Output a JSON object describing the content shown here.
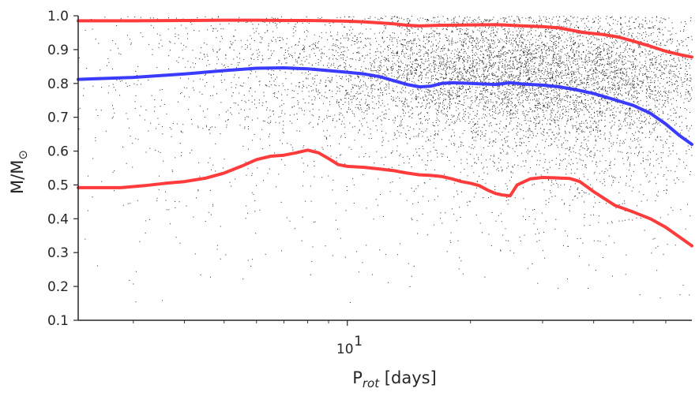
{
  "chart_data": {
    "type": "scatter",
    "title": "",
    "xscale": "log",
    "xlim": [
      2.2,
      69.5
    ],
    "ylim": [
      0.1,
      1.0
    ],
    "xlabel": {
      "base": "P",
      "sub": "rot",
      "rest": " [days]"
    },
    "ylabel": {
      "base": "M/M",
      "sub": "⊙"
    },
    "xticks": [
      {
        "value": 10,
        "base": "10",
        "exp": "1"
      }
    ],
    "yticks": [
      {
        "value": 0.1,
        "label": "0.1"
      },
      {
        "value": 0.2,
        "label": "0.2"
      },
      {
        "value": 0.3,
        "label": "0.3"
      },
      {
        "value": 0.4,
        "label": "0.4"
      },
      {
        "value": 0.5,
        "label": "0.5"
      },
      {
        "value": 0.6,
        "label": "0.6"
      },
      {
        "value": 0.7,
        "label": "0.7"
      },
      {
        "value": 0.8,
        "label": "0.8"
      },
      {
        "value": 0.9,
        "label": "0.9"
      },
      {
        "value": 1.0,
        "label": "1.0"
      }
    ],
    "grid": false,
    "scatter": {
      "color": "#000000",
      "description_points_count": 9000,
      "density": [
        {
          "cx": 28,
          "cy": 0.83,
          "sx": 0.55,
          "sy": 0.09,
          "w": 0.4
        },
        {
          "cx": 18,
          "cy": 0.85,
          "sx": 0.75,
          "sy": 0.12,
          "w": 0.3
        },
        {
          "cx": 40,
          "cy": 0.7,
          "sx": 0.45,
          "sy": 0.18,
          "w": 0.18
        },
        {
          "cx": 8,
          "cy": 0.7,
          "sx": 1.1,
          "sy": 0.25,
          "w": 0.12
        }
      ]
    },
    "series": [
      {
        "color": "#ff3b3b",
        "x": [
          2.2,
          3,
          4,
          5,
          6,
          7,
          8,
          9,
          10,
          11,
          12,
          13,
          14,
          15,
          17,
          20,
          23,
          25,
          27,
          30,
          33,
          35,
          38,
          42,
          46,
          50,
          55,
          60,
          65,
          69.5
        ],
        "y": [
          0.985,
          0.985,
          0.986,
          0.987,
          0.987,
          0.986,
          0.986,
          0.985,
          0.984,
          0.982,
          0.979,
          0.976,
          0.972,
          0.97,
          0.972,
          0.973,
          0.974,
          0.972,
          0.97,
          0.968,
          0.964,
          0.958,
          0.95,
          0.945,
          0.937,
          0.925,
          0.91,
          0.895,
          0.885,
          0.878
        ]
      },
      {
        "color": "#3b3bff",
        "x": [
          2.2,
          3,
          4,
          5,
          6,
          7,
          8,
          9,
          10,
          11,
          12,
          13,
          14,
          15,
          16,
          17,
          18,
          20,
          23,
          25,
          27,
          30,
          33,
          36,
          40,
          45,
          50,
          55,
          60,
          65,
          69.5
        ],
        "y": [
          0.812,
          0.818,
          0.828,
          0.838,
          0.845,
          0.846,
          0.843,
          0.838,
          0.833,
          0.828,
          0.82,
          0.808,
          0.797,
          0.79,
          0.792,
          0.8,
          0.802,
          0.8,
          0.797,
          0.802,
          0.798,
          0.795,
          0.79,
          0.782,
          0.77,
          0.752,
          0.735,
          0.712,
          0.68,
          0.645,
          0.62
        ]
      },
      {
        "color": "#ff3b3b",
        "x": [
          2.2,
          2.8,
          3.2,
          3.6,
          4.0,
          4.5,
          5.0,
          5.5,
          6.0,
          6.5,
          7.0,
          7.5,
          8.0,
          8.5,
          9.0,
          9.5,
          10,
          11,
          12,
          13,
          14,
          15,
          16,
          17,
          18,
          19,
          20,
          21,
          22,
          23,
          24,
          25,
          26,
          28,
          30,
          32,
          35,
          37,
          40,
          45,
          50,
          55,
          60,
          65,
          69.5
        ],
        "y": [
          0.492,
          0.492,
          0.498,
          0.505,
          0.51,
          0.52,
          0.535,
          0.555,
          0.575,
          0.585,
          0.588,
          0.595,
          0.603,
          0.595,
          0.578,
          0.56,
          0.555,
          0.552,
          0.547,
          0.542,
          0.535,
          0.53,
          0.528,
          0.525,
          0.518,
          0.51,
          0.505,
          0.498,
          0.485,
          0.475,
          0.47,
          0.468,
          0.5,
          0.518,
          0.522,
          0.521,
          0.519,
          0.51,
          0.48,
          0.44,
          0.42,
          0.4,
          0.375,
          0.345,
          0.32
        ]
      }
    ]
  }
}
